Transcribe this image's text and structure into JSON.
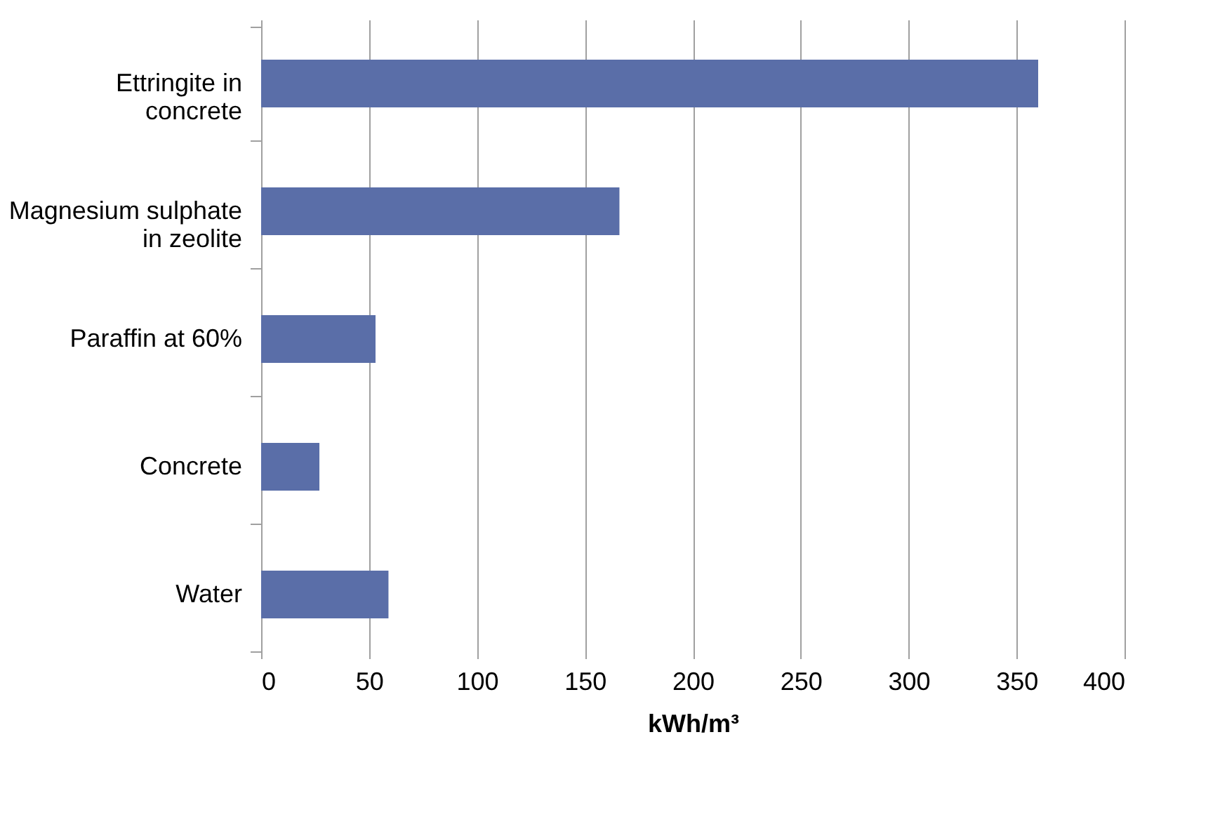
{
  "chart_data": {
    "type": "bar",
    "orientation": "horizontal",
    "xlabel": "kWh/m³",
    "categories": [
      "Ettringite in concrete",
      "Magnesium sulphate in zeolite",
      "Paraffin at 60%",
      "Concrete",
      "Water"
    ],
    "values": [
      360,
      166,
      53,
      27,
      59
    ],
    "color": "#5a6ea8",
    "xlim": [
      0,
      400
    ],
    "xticks": [
      0,
      50,
      100,
      150,
      200,
      250,
      300,
      350,
      400
    ],
    "grid": "x"
  }
}
